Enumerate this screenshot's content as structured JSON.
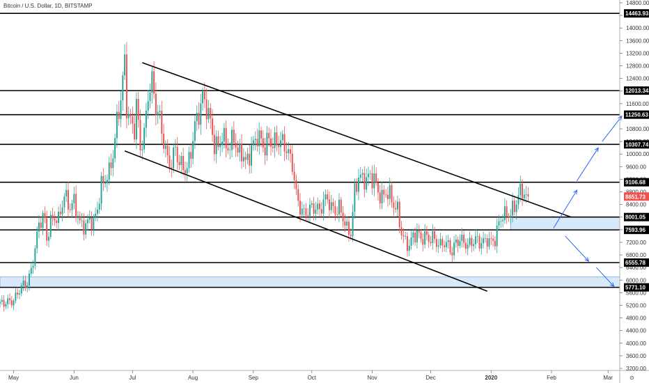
{
  "chart_data": {
    "type": "candlestick",
    "title": "Bitcoin / U.S. Dollar, 1D, BITSTAMP",
    "timezone_marker": "⊙",
    "ylim": [
      3050,
      14800
    ],
    "y_ticks": [
      3200,
      3600,
      4000,
      4400,
      4800,
      5200,
      5600,
      6000,
      6400,
      6800,
      7200,
      7600,
      8000,
      8400,
      8800,
      9200,
      9600,
      10000,
      10400,
      10800,
      11200,
      11600,
      12000,
      12400,
      12800,
      13200,
      13600,
      14000,
      14400,
      14800
    ],
    "x_range_days": [
      -7,
      311
    ],
    "x_ticks": [
      {
        "label": "May",
        "day": 0
      },
      {
        "label": "Jun",
        "day": 31
      },
      {
        "label": "Jul",
        "day": 61
      },
      {
        "label": "Aug",
        "day": 92
      },
      {
        "label": "Sep",
        "day": 123
      },
      {
        "label": "Oct",
        "day": 153
      },
      {
        "label": "Nov",
        "day": 184
      },
      {
        "label": "Dec",
        "day": 214
      },
      {
        "label": "2020",
        "day": 245
      },
      {
        "label": "Feb",
        "day": 276
      },
      {
        "label": "Mar",
        "day": 305
      }
    ],
    "price_path": [
      [
        -7,
        5250
      ],
      [
        0,
        5350
      ],
      [
        3,
        5700
      ],
      [
        5,
        5850
      ],
      [
        7,
        5900
      ],
      [
        9,
        6300
      ],
      [
        11,
        7000
      ],
      [
        13,
        7800
      ],
      [
        15,
        8000
      ],
      [
        16,
        7850
      ],
      [
        17,
        7300
      ],
      [
        19,
        7850
      ],
      [
        21,
        8000
      ],
      [
        23,
        7900
      ],
      [
        26,
        8700
      ],
      [
        29,
        8300
      ],
      [
        31,
        8500
      ],
      [
        34,
        7800
      ],
      [
        37,
        7700
      ],
      [
        39,
        7950
      ],
      [
        41,
        7800
      ],
      [
        43,
        8300
      ],
      [
        45,
        9000
      ],
      [
        47,
        9200
      ],
      [
        49,
        9400
      ],
      [
        51,
        10000
      ],
      [
        53,
        11000
      ],
      [
        55,
        11800
      ],
      [
        57,
        12900
      ],
      [
        58,
        11500
      ],
      [
        60,
        11000
      ],
      [
        62,
        10800
      ],
      [
        63,
        11600
      ],
      [
        65,
        10200
      ],
      [
        67,
        10600
      ],
      [
        69,
        11900
      ],
      [
        71,
        12300
      ],
      [
        73,
        11500
      ],
      [
        75,
        11100
      ],
      [
        77,
        10400
      ],
      [
        79,
        9800
      ],
      [
        81,
        9700
      ],
      [
        83,
        10200
      ],
      [
        85,
        9700
      ],
      [
        87,
        9600
      ],
      [
        89,
        9500
      ],
      [
        91,
        10100
      ],
      [
        93,
        10900
      ],
      [
        95,
        11300
      ],
      [
        97,
        11800
      ],
      [
        99,
        11500
      ],
      [
        101,
        11000
      ],
      [
        103,
        10300
      ],
      [
        105,
        10200
      ],
      [
        107,
        10600
      ],
      [
        109,
        10300
      ],
      [
        111,
        10200
      ],
      [
        113,
        10600
      ],
      [
        115,
        10000
      ],
      [
        117,
        10100
      ],
      [
        119,
        9700
      ],
      [
        121,
        10000
      ],
      [
        123,
        10300
      ],
      [
        125,
        10600
      ],
      [
        127,
        10400
      ],
      [
        129,
        10200
      ],
      [
        131,
        10500
      ],
      [
        133,
        10300
      ],
      [
        135,
        10400
      ],
      [
        137,
        10400
      ],
      [
        139,
        10300
      ],
      [
        141,
        10000
      ],
      [
        143,
        9700
      ],
      [
        145,
        8700
      ],
      [
        147,
        8300
      ],
      [
        149,
        8100
      ],
      [
        151,
        8200
      ],
      [
        153,
        8300
      ],
      [
        155,
        8300
      ],
      [
        157,
        8200
      ],
      [
        159,
        8500
      ],
      [
        161,
        8600
      ],
      [
        163,
        8300
      ],
      [
        165,
        8200
      ],
      [
        167,
        8300
      ],
      [
        169,
        8000
      ],
      [
        171,
        7600
      ],
      [
        173,
        7500
      ],
      [
        175,
        8800
      ],
      [
        177,
        9300
      ],
      [
        179,
        9200
      ],
      [
        181,
        9200
      ],
      [
        183,
        9300
      ],
      [
        185,
        9200
      ],
      [
        187,
        8800
      ],
      [
        189,
        8600
      ],
      [
        191,
        8800
      ],
      [
        193,
        8700
      ],
      [
        195,
        8400
      ],
      [
        197,
        8200
      ],
      [
        199,
        7500
      ],
      [
        201,
        7200
      ],
      [
        203,
        7100
      ],
      [
        205,
        7400
      ],
      [
        207,
        7500
      ],
      [
        209,
        7300
      ],
      [
        211,
        7400
      ],
      [
        213,
        7300
      ],
      [
        215,
        7350
      ],
      [
        217,
        7200
      ],
      [
        219,
        7100
      ],
      [
        221,
        7200
      ],
      [
        223,
        7100
      ],
      [
        225,
        6900
      ],
      [
        227,
        7200
      ],
      [
        229,
        7300
      ],
      [
        231,
        7200
      ],
      [
        233,
        7100
      ],
      [
        235,
        7200
      ],
      [
        237,
        7300
      ],
      [
        239,
        7200
      ],
      [
        241,
        7200
      ],
      [
        243,
        7300
      ],
      [
        245,
        7200
      ],
      [
        247,
        7300
      ],
      [
        249,
        7800
      ],
      [
        251,
        8100
      ],
      [
        253,
        8050
      ],
      [
        255,
        8150
      ],
      [
        257,
        8300
      ],
      [
        259,
        8700
      ],
      [
        261,
        8850
      ],
      [
        263,
        8650
      ],
      [
        264,
        8650
      ]
    ],
    "last_price": 8651.73,
    "levels": [
      {
        "price": 14463.93,
        "label": "14463.93"
      },
      {
        "price": 12013.34,
        "label": "12013.34"
      },
      {
        "price": 11250.63,
        "label": "11250.63"
      },
      {
        "price": 10307.74,
        "label": "10307.74"
      },
      {
        "price": 9106.68,
        "label": "9106.68"
      },
      {
        "price": 8001.05,
        "label": "8001.05"
      },
      {
        "price": 7593.96,
        "label": "7593.96"
      },
      {
        "price": 6555.78,
        "label": "6555.78"
      },
      {
        "price": 5771.1,
        "label": "5771.10"
      }
    ],
    "zones": [
      {
        "from_day": -7,
        "to_day": 311,
        "low": 5771.1,
        "high": 6100
      },
      {
        "from_day": 255,
        "to_day": 311,
        "low": 7593.96,
        "high": 8001.05
      }
    ],
    "trendlines": [
      {
        "d1": 66,
        "p1": 12900,
        "d2": 286,
        "p2": 8001
      },
      {
        "d1": 57,
        "p1": 10100,
        "d2": 243,
        "p2": 5650
      }
    ],
    "projection_arrows": [
      {
        "d1": 277,
        "p1": 7650,
        "d2": 289,
        "p2": 8850
      },
      {
        "d1": 289,
        "p1": 9150,
        "d2": 300,
        "p2": 10200
      },
      {
        "d1": 302,
        "p1": 10400,
        "d2": 312,
        "p2": 11200
      },
      {
        "d1": 283,
        "p1": 7400,
        "d2": 295,
        "p2": 6600
      },
      {
        "d1": 299,
        "p1": 6400,
        "d2": 308,
        "p2": 5800
      }
    ],
    "colors": {
      "up": "#26a69a",
      "down": "#ef5350",
      "level_line": "#000000",
      "label_bg": "#000000",
      "last_price_bg": "#ef5350",
      "zone_fill": "#d8eafa",
      "zone_stroke": "#6fa8dc",
      "arrow": "#2962ff",
      "grid_axis": "#777777"
    }
  }
}
